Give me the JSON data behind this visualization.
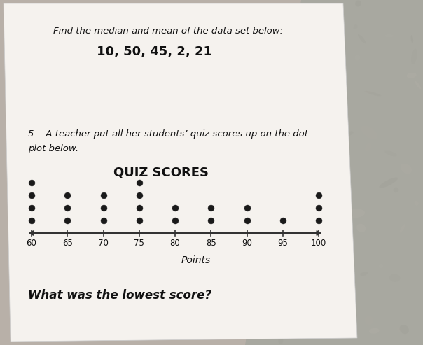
{
  "title_text": "Find the median and mean of the data set below:",
  "data_set": "10, 50, 45, 2, 21",
  "q5_line1": "5.   A teacher put all her students’ quiz scores up on the dot",
  "q5_line2": "plot below.",
  "dot_plot_title": "QUIZ SCORES",
  "xlabel": "Points",
  "tick_positions": [
    60,
    65,
    70,
    75,
    80,
    85,
    90,
    95,
    100
  ],
  "dot_data": {
    "60": 4,
    "65": 3,
    "70": 3,
    "75": 4,
    "80": 2,
    "85": 2,
    "90": 2,
    "95": 1,
    "100": 3
  },
  "dot_color": "#1a1a1a",
  "background_color": "#b8b0a8",
  "paper_color": "#f5f2ee",
  "font_color": "#111111",
  "lowest_score_text": "What was the lowest score?"
}
